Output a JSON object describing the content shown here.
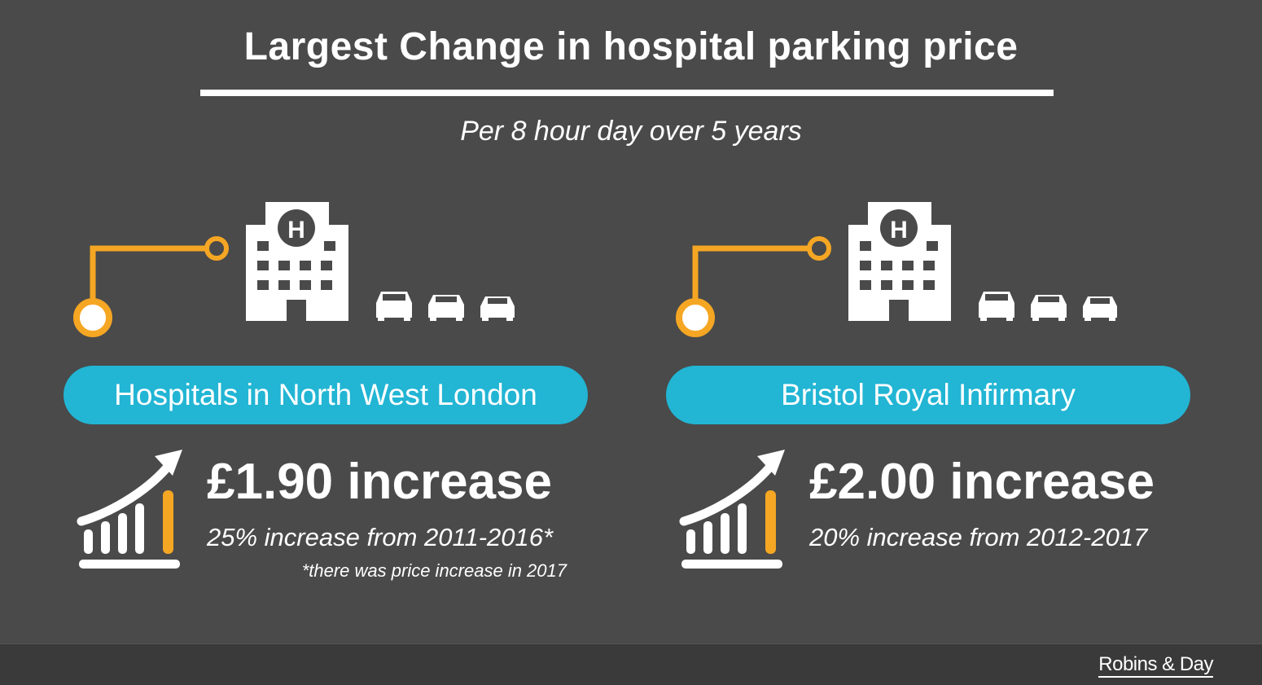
{
  "title": "Largest Change in hospital parking price",
  "subtitle": "Per 8 hour day over 5 years",
  "colors": {
    "background": "#4a4a4a",
    "accent": "#f5a623",
    "pill": "#22b5d4",
    "text": "#ffffff"
  },
  "icons": [
    "hospital-icon",
    "car-icon",
    "growth-chart-icon",
    "route-connector-icon"
  ],
  "panels": [
    {
      "location": "Hospitals in North West London",
      "increase": "£1.90 increase",
      "detail": "25% increase from 2011-2016*",
      "note": "*there was price increase in 2017"
    },
    {
      "location": "Bristol Royal Infirmary",
      "increase": "£2.00 increase",
      "detail": "20% increase from 2012-2017",
      "note": ""
    }
  ],
  "footer": {
    "logo": "Robins & Day"
  }
}
